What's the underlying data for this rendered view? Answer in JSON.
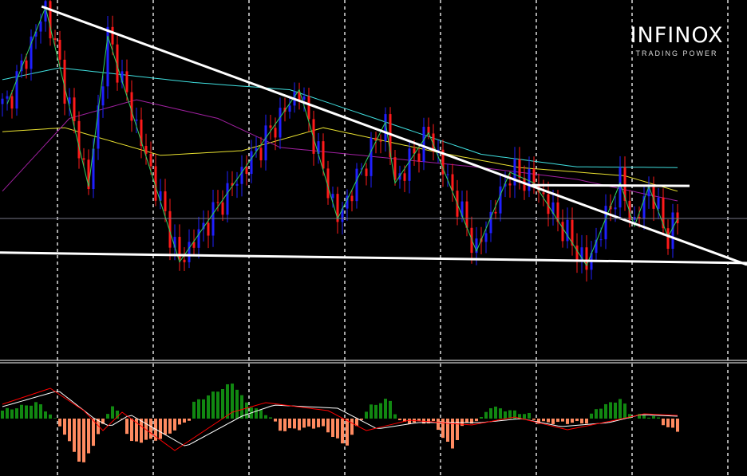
{
  "logo": {
    "brand": "INFINOX",
    "tagline": "TRADING POWER",
    "accent": "#f5c400"
  },
  "colors": {
    "background": "#000000",
    "bull_candle": "#1f1fff",
    "bear_candle": "#ff1a1a",
    "zigzag": "#30d060",
    "ma_fast": "#40e0e0",
    "ma_mid": "#e8e030",
    "ma_slow": "#a020a0",
    "trendline": "#ffffff",
    "hist_pos": "#118811",
    "hist_neg": "#ff8a60",
    "macd_line": "#ffffff",
    "signal_line": "#ff0000",
    "grid": "#ffffff"
  },
  "chart_data": [
    {
      "type": "candlestick",
      "pane": "price",
      "axes_printed": false,
      "grid": "vertical dashed",
      "price_range": [
        0,
        100
      ],
      "bars": 142,
      "zigzag_pivots": [
        [
          1,
          71
        ],
        [
          9,
          98
        ],
        [
          18,
          48
        ],
        [
          22,
          90
        ],
        [
          37,
          27
        ],
        [
          62,
          75
        ],
        [
          70,
          39
        ],
        [
          80,
          66
        ],
        [
          82,
          49
        ],
        [
          89,
          63
        ],
        [
          99,
          30
        ],
        [
          106,
          52
        ],
        [
          111,
          49
        ],
        [
          122,
          26
        ],
        [
          129,
          49
        ],
        [
          132,
          37
        ],
        [
          135,
          48
        ],
        [
          139,
          34
        ],
        [
          141,
          39
        ]
      ],
      "trendlines": [
        {
          "kind": "descending resistance",
          "from": [
            8.7,
            98.2
          ],
          "to": [
            156,
            26.2
          ]
        },
        {
          "kind": "support",
          "from": [
            0,
            29.6
          ],
          "to": [
            156,
            26.7
          ]
        },
        {
          "kind": "horizontal resistance",
          "from": [
            111,
            48.4
          ],
          "to": [
            144,
            48.2
          ]
        },
        {
          "kind": "current price",
          "from": [
            0,
            39.1
          ],
          "to": [
            156,
            39.1
          ]
        }
      ],
      "moving_averages": [
        {
          "color": "ma_fast",
          "points": [
            [
              0,
              77.8
            ],
            [
              12,
              81.1
            ],
            [
              40,
              77
            ],
            [
              60,
              75
            ],
            [
              80,
              66
            ],
            [
              100,
              57
            ],
            [
              120,
              53.5
            ],
            [
              141,
              53.3
            ]
          ]
        },
        {
          "color": "ma_mid",
          "points": [
            [
              0,
              63.3
            ],
            [
              13,
              64.4
            ],
            [
              33,
              56.7
            ],
            [
              50,
              58
            ],
            [
              67,
              64.4
            ],
            [
              90,
              57.8
            ],
            [
              108,
              53.3
            ],
            [
              130,
              51
            ],
            [
              141,
              46.7
            ]
          ]
        },
        {
          "color": "ma_slow",
          "points": [
            [
              0,
              46.7
            ],
            [
              14,
              67
            ],
            [
              28,
              72.2
            ],
            [
              45,
              67
            ],
            [
              58,
              58.9
            ],
            [
              75,
              56.7
            ],
            [
              100,
              53.3
            ],
            [
              120,
              50
            ],
            [
              141,
              44
            ]
          ]
        }
      ]
    },
    {
      "type": "bar",
      "pane": "macd",
      "axes_printed": false,
      "histogram_keypoints": [
        [
          0,
          10
        ],
        [
          7.5,
          20
        ],
        [
          10.8,
          0
        ],
        [
          11.7,
          -5
        ],
        [
          16.7,
          -60
        ],
        [
          20,
          -20
        ],
        [
          21.7,
          0
        ],
        [
          22.5,
          20
        ],
        [
          25,
          0
        ],
        [
          26.7,
          -30
        ],
        [
          33.3,
          -25
        ],
        [
          39.2,
          0
        ],
        [
          40,
          20
        ],
        [
          48.3,
          45
        ],
        [
          50.8,
          20
        ],
        [
          56.7,
          0
        ],
        [
          57.5,
          -15
        ],
        [
          66.7,
          -10
        ],
        [
          71.7,
          -35
        ],
        [
          75,
          0
        ],
        [
          76.7,
          15
        ],
        [
          80.8,
          25
        ],
        [
          82.5,
          0
        ],
        [
          83.3,
          -5
        ],
        [
          90,
          -5
        ],
        [
          91.7,
          -20
        ],
        [
          94.2,
          -40
        ],
        [
          95.8,
          -10
        ],
        [
          100,
          0
        ],
        [
          101.7,
          15
        ],
        [
          110,
          5
        ],
        [
          111.7,
          -5
        ],
        [
          122.5,
          -5
        ],
        [
          123.3,
          10
        ],
        [
          129.2,
          25
        ],
        [
          131.7,
          0
        ],
        [
          133.3,
          5
        ],
        [
          137.5,
          0
        ],
        [
          138.3,
          -10
        ],
        [
          141,
          -15
        ]
      ],
      "macd_line": [
        [
          0,
          15
        ],
        [
          11.7,
          35
        ],
        [
          19.2,
          0
        ],
        [
          22.5,
          -10
        ],
        [
          26.7,
          5
        ],
        [
          38.3,
          -35
        ],
        [
          50,
          3
        ],
        [
          56.7,
          17
        ],
        [
          70,
          13
        ],
        [
          78.3,
          -13
        ],
        [
          86.7,
          -5
        ],
        [
          100,
          -5
        ],
        [
          108.3,
          0
        ],
        [
          116.7,
          -10
        ],
        [
          126.7,
          -5
        ],
        [
          133.3,
          5
        ],
        [
          141,
          3
        ]
      ],
      "signal_line": [
        [
          0,
          18
        ],
        [
          10,
          38
        ],
        [
          17,
          10
        ],
        [
          21,
          -15
        ],
        [
          25,
          8
        ],
        [
          36,
          -40
        ],
        [
          48,
          8
        ],
        [
          55,
          20
        ],
        [
          68,
          10
        ],
        [
          76,
          -15
        ],
        [
          85,
          -2
        ],
        [
          98,
          -8
        ],
        [
          107,
          2
        ],
        [
          118,
          -14
        ],
        [
          128,
          -2
        ],
        [
          134,
          6
        ],
        [
          141,
          4
        ]
      ]
    }
  ]
}
